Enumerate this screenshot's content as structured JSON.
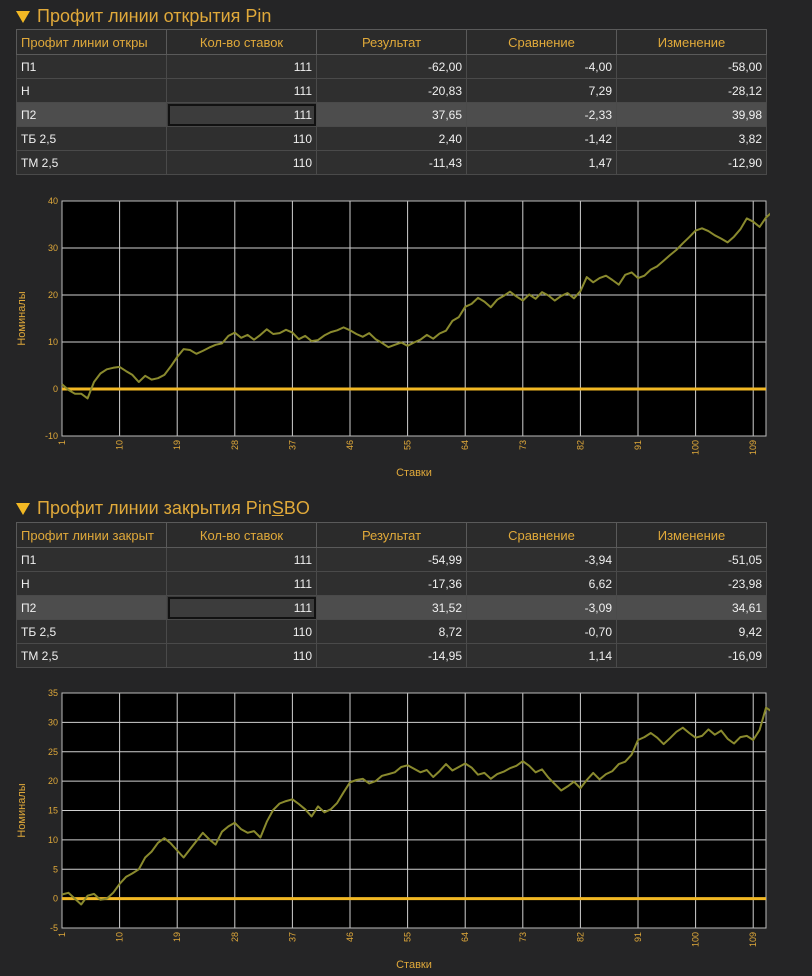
{
  "section1": {
    "title_pre": "Профит линии открытия Pin",
    "title_underlined": "",
    "title_post": "",
    "table": {
      "headers": [
        "Профит линии откры",
        "Кол-во ставок",
        "Результат",
        "Сравнение",
        "Изменение"
      ],
      "rows": [
        [
          "П1",
          "111",
          "-62,00",
          "-4,00",
          "-58,00"
        ],
        [
          "Н",
          "111",
          "-20,83",
          "7,29",
          "-28,12"
        ],
        [
          "П2",
          "111",
          "37,65",
          "-2,33",
          "39,98"
        ],
        [
          "ТБ 2,5",
          "110",
          "2,40",
          "-1,42",
          "3,82"
        ],
        [
          "ТМ 2,5",
          "110",
          "-11,43",
          "1,47",
          "-12,90"
        ]
      ]
    }
  },
  "section2": {
    "title_pre": "Профит линии закрытия Pin",
    "title_underlined": "S",
    "title_post": "BO",
    "table": {
      "headers": [
        "Профит линии закрыт",
        "Кол-во ставок",
        "Результат",
        "Сравнение",
        "Изменение"
      ],
      "rows": [
        [
          "П1",
          "111",
          "-54,99",
          "-3,94",
          "-51,05"
        ],
        [
          "Н",
          "111",
          "-17,36",
          "6,62",
          "-23,98"
        ],
        [
          "П2",
          "111",
          "31,52",
          "-3,09",
          "34,61"
        ],
        [
          "ТБ 2,5",
          "110",
          "8,72",
          "-0,70",
          "9,42"
        ],
        [
          "ТМ 2,5",
          "110",
          "-14,95",
          "1,14",
          "-16,09"
        ]
      ]
    }
  },
  "colors": {
    "accent": "#e0a93a",
    "line": "#8a8a2e",
    "zero_line": "#f2b824",
    "grid": "#d0d0d0"
  },
  "chart_data": [
    {
      "type": "line",
      "xlabel": "Ставки",
      "ylabel": "Номиналы",
      "ylim": [
        -10,
        40
      ],
      "yticks": [
        -10,
        0,
        10,
        20,
        30,
        40
      ],
      "xlim": [
        1,
        111
      ],
      "xticks": [
        1,
        10,
        19,
        28,
        37,
        46,
        55,
        64,
        73,
        82,
        91,
        100,
        109
      ],
      "grid": true,
      "reference_line": 0,
      "series": [
        {
          "values": [
            1,
            -0.2,
            -1,
            -1,
            -2,
            1.5,
            3.3,
            4.2,
            4.5,
            4.7,
            3.8,
            3,
            1.5,
            2.8,
            2,
            2.3,
            3,
            4.8,
            6.8,
            8.5,
            8.3,
            7.5,
            8.1,
            8.8,
            9.4,
            9.7,
            11.3,
            12,
            10.9,
            11.5,
            10.5,
            11.5,
            12.7,
            11.7,
            11.9,
            12.6,
            12,
            10.6,
            11.3,
            10.2,
            10.4,
            11.4,
            12.1,
            12.5,
            13.1,
            12.5,
            11.7,
            11.1,
            11.9,
            10.6,
            9.8,
            8.9,
            9.4,
            9.9,
            9.2,
            9.9,
            10.5,
            11.5,
            10.7,
            11.8,
            12.4,
            14.5,
            15.3,
            17.5,
            18.1,
            19.4,
            18.6,
            17.4,
            19,
            19.8,
            20.7,
            19.7,
            18.8,
            20.1,
            19.2,
            20.6,
            19.9,
            18.8,
            19.8,
            20.4,
            19.3,
            20.8,
            23.8,
            22.7,
            23.6,
            24.1,
            23.2,
            22.2,
            24.3,
            24.8,
            23.6,
            24.1,
            25.4,
            26.1,
            27.3,
            28.5,
            29.6,
            31,
            32.3,
            33.7,
            34.2,
            33.6,
            32.7,
            32,
            31.2,
            32.4,
            34,
            36.3,
            35.6,
            34.5,
            36.5,
            37.7
          ]
        }
      ]
    },
    {
      "type": "line",
      "xlabel": "Ставки",
      "ylabel": "Номиналы",
      "ylim": [
        -5,
        35
      ],
      "yticks": [
        -5,
        0,
        5,
        10,
        15,
        20,
        25,
        30,
        35
      ],
      "xlim": [
        1,
        111
      ],
      "xticks": [
        1,
        10,
        19,
        28,
        37,
        46,
        55,
        64,
        73,
        82,
        91,
        100,
        109
      ],
      "grid": true,
      "reference_line": 0,
      "series": [
        {
          "values": [
            0.7,
            1,
            0,
            -1,
            0.5,
            0.8,
            -0.2,
            0,
            1,
            2.5,
            3.7,
            4.3,
            5,
            7,
            8,
            9.5,
            10.3,
            9.4,
            8.2,
            7,
            8.4,
            9.8,
            11.2,
            10.1,
            9.2,
            11.4,
            12.3,
            12.9,
            11.8,
            11.2,
            11.5,
            10.4,
            13.1,
            15.1,
            16.2,
            16.6,
            16.9,
            16.1,
            15.2,
            14,
            15.7,
            14.7,
            15.2,
            16.3,
            18.1,
            19.8,
            20.2,
            20.4,
            19.6,
            20,
            20.9,
            21.2,
            21.5,
            22.4,
            22.7,
            22.1,
            21.5,
            21.9,
            20.7,
            21.7,
            22.9,
            21.8,
            22.4,
            23,
            22.3,
            21.1,
            21.4,
            20.4,
            21.2,
            21.6,
            22.2,
            22.6,
            23.4,
            22.6,
            21.5,
            22,
            20.6,
            19.5,
            18.4,
            19.1,
            19.9,
            18.8,
            20.2,
            21.4,
            20.3,
            21.2,
            21.7,
            22.9,
            23.3,
            24.5,
            27,
            27.5,
            28.2,
            27.4,
            26.3,
            27.3,
            28.4,
            29.1,
            28.2,
            27.4,
            27.7,
            28.8,
            27.9,
            28.6,
            27.2,
            26.4,
            27.5,
            27.7,
            27,
            28.7,
            32.5,
            31.8
          ]
        }
      ]
    }
  ]
}
